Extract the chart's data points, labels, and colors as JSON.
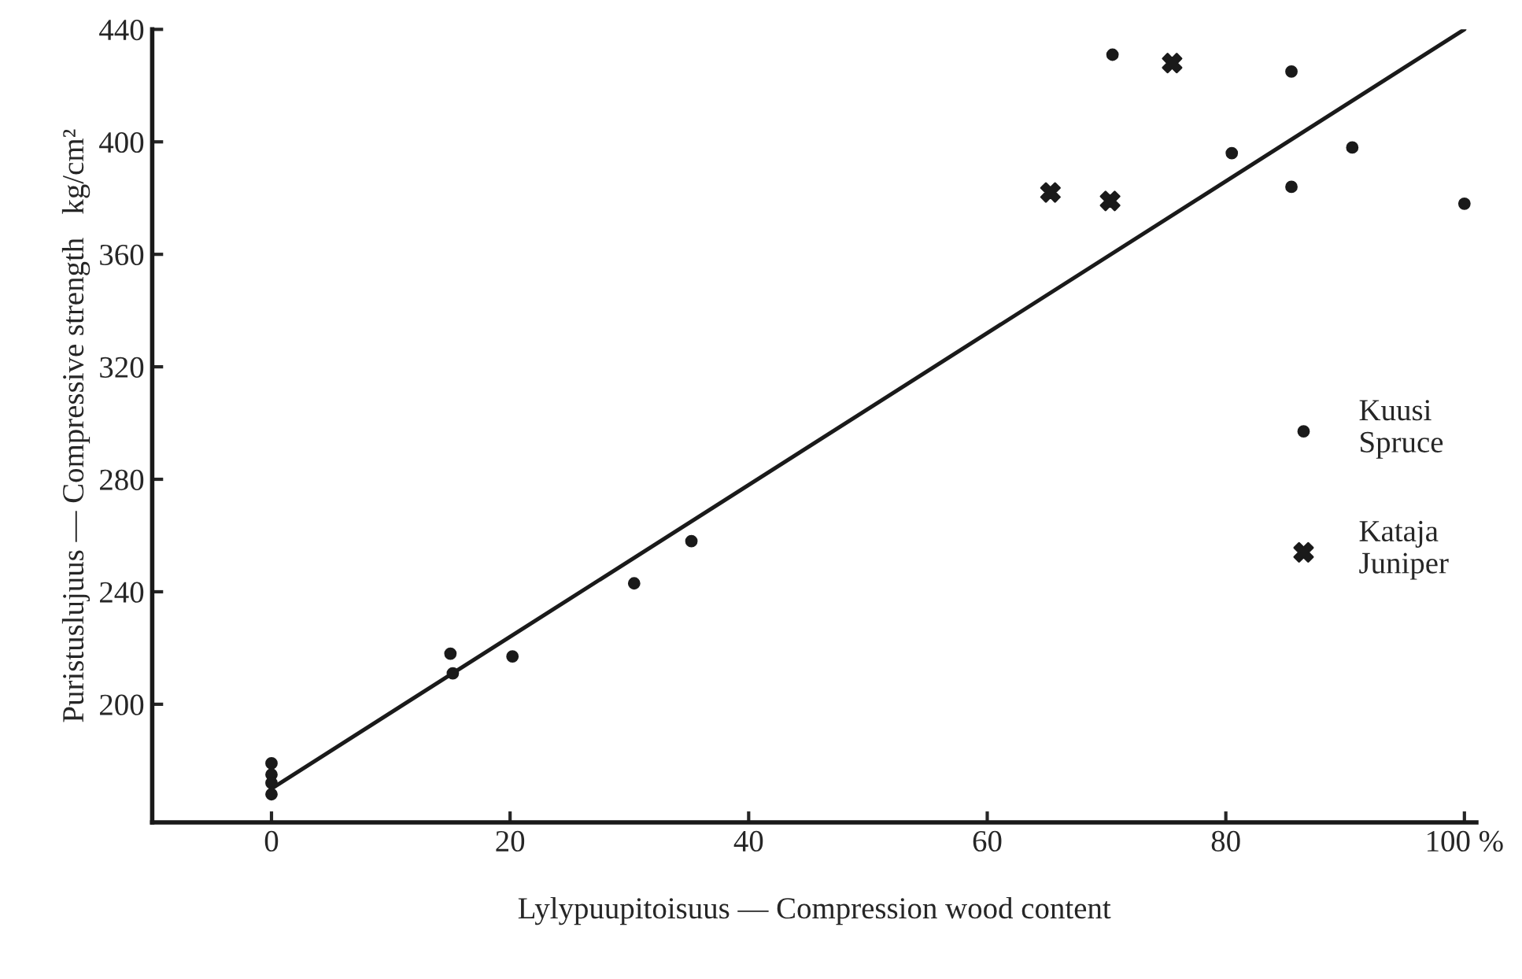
{
  "chart_data": {
    "type": "scatter",
    "xlabel": "Lylypuupitoisuus — Compression wood content",
    "ylabel": "Puristuslujuus — Compressive strength   kg/cm²",
    "xlim": [
      -10,
      101
    ],
    "ylim": [
      158,
      440
    ],
    "xticks": [
      0,
      20,
      40,
      60,
      80,
      {
        "value": 100,
        "label": "100 %"
      }
    ],
    "yticks": [
      200,
      240,
      280,
      320,
      360,
      400,
      440
    ],
    "grid": false,
    "legend": "right",
    "series": [
      {
        "name": "Kuusi\nSpruce",
        "marker": "circle",
        "color": "#1a1a1a",
        "x": [
          0,
          0,
          0,
          0,
          15,
          15.2,
          20.2,
          30.4,
          35.2,
          70.5,
          85.5,
          80.5,
          90.6,
          85.5,
          100
        ],
        "values": [
          179,
          175,
          172,
          168,
          218,
          211,
          217,
          243,
          258,
          431,
          425,
          396,
          398,
          384,
          378
        ]
      },
      {
        "name": "Kataja\nJuniper",
        "marker": "cross",
        "color": "#1a1a1a",
        "x": [
          75.5,
          65.3,
          70.3
        ],
        "values": [
          428,
          382,
          379
        ]
      },
      {
        "type": "line",
        "color": "#1a1a1a",
        "x": [
          0,
          100
        ],
        "values": [
          170,
          440
        ]
      }
    ]
  }
}
